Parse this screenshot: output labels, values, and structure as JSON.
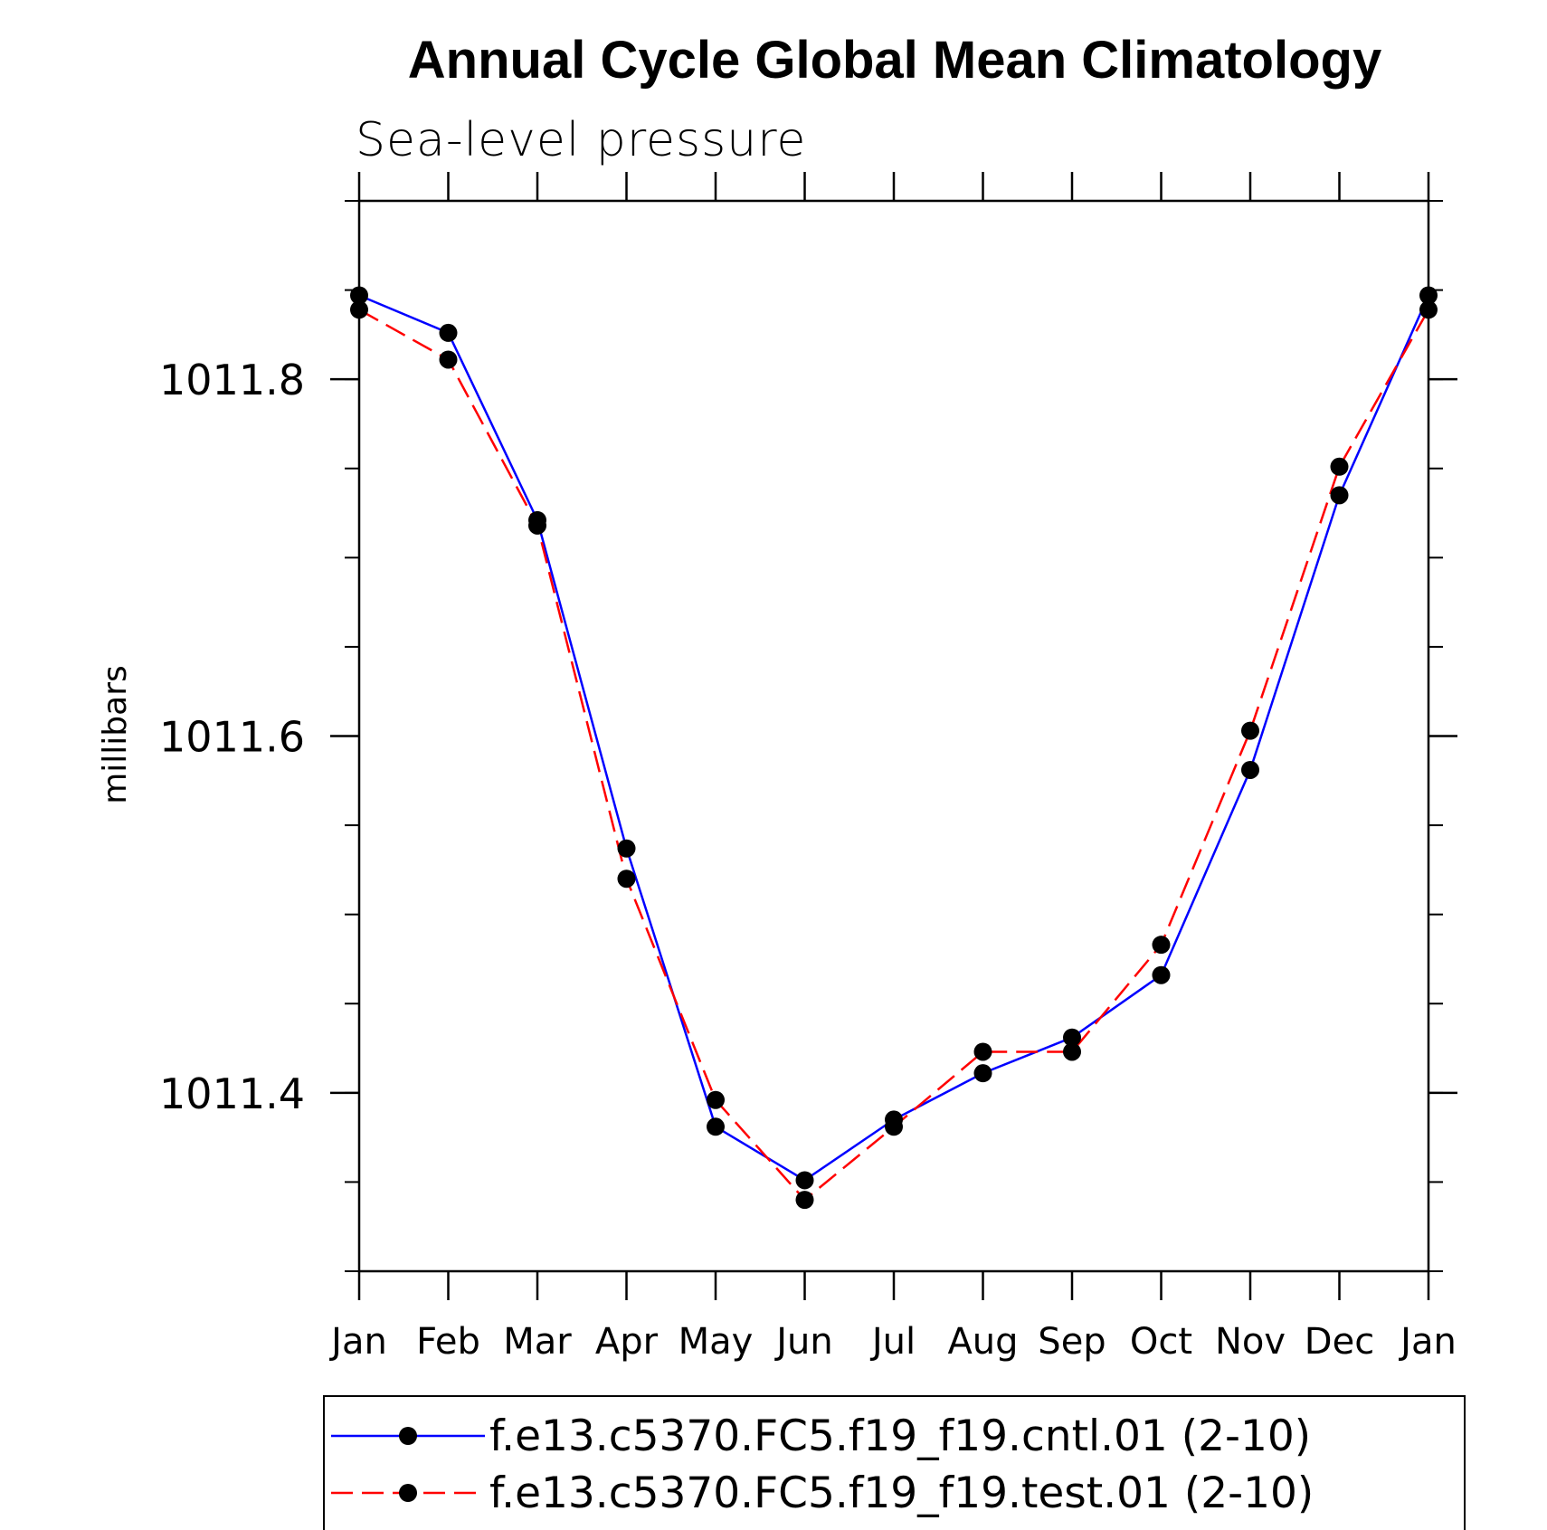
{
  "chart_data": {
    "type": "line",
    "title": "Annual Cycle Global Mean Climatology",
    "subtitle": "Sea-level pressure",
    "ylabel": "millibars",
    "xlabel": "",
    "categories": [
      "Jan",
      "Feb",
      "Mar",
      "Apr",
      "May",
      "Jun",
      "Jul",
      "Aug",
      "Sep",
      "Oct",
      "Nov",
      "Dec",
      "Jan"
    ],
    "ylim": [
      1011.3,
      1011.9
    ],
    "yticks": [
      1011.4,
      1011.6,
      1011.8
    ],
    "ytick_labels": [
      "1011.4",
      "1011.6",
      "1011.8"
    ],
    "yminor_step": 0.05,
    "grid": false,
    "legend_position": "bottom",
    "series": [
      {
        "name": "f.e13.c5370.FC5.f19_f19.cntl.01 (2-10)",
        "color": "#0000ff",
        "dash": "solid",
        "marker": "circle",
        "values": [
          1011.847,
          1011.826,
          1011.721,
          1011.537,
          1011.381,
          1011.351,
          1011.385,
          1011.411,
          1011.431,
          1011.466,
          1011.581,
          1011.735,
          1011.847
        ]
      },
      {
        "name": "f.e13.c5370.FC5.f19_f19.test.01 (2-10)",
        "color": "#ff0000",
        "dash": "dashed",
        "marker": "circle",
        "values": [
          1011.839,
          1011.811,
          1011.718,
          1011.52,
          1011.396,
          1011.34,
          1011.381,
          1011.423,
          1011.423,
          1011.483,
          1011.603,
          1011.751,
          1011.839
        ]
      }
    ]
  }
}
